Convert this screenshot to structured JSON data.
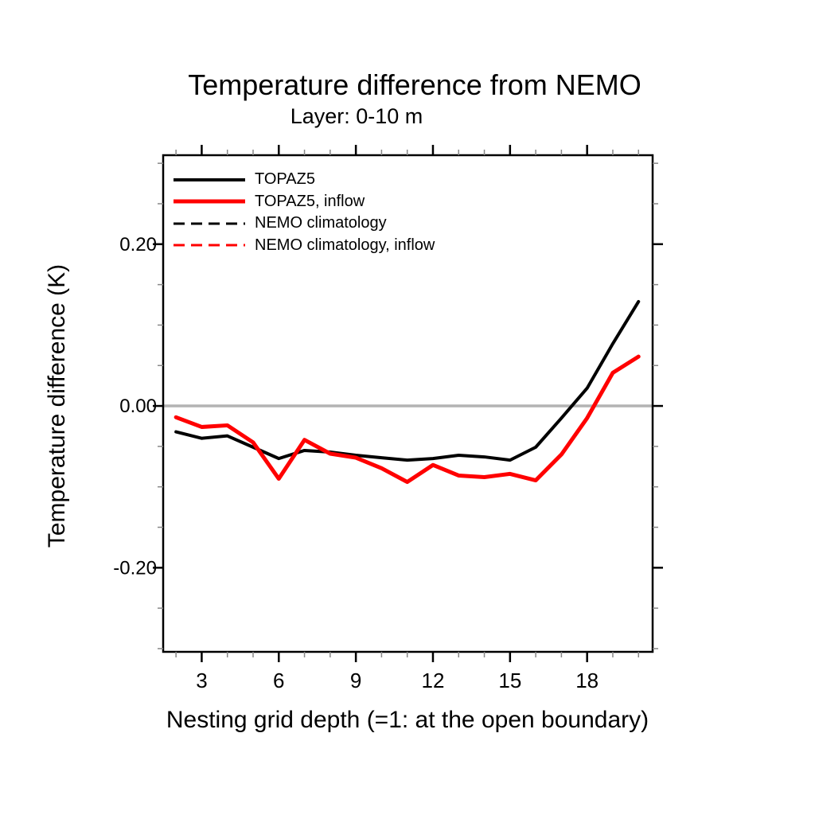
{
  "chart_data": {
    "type": "line",
    "title": "Temperature difference from NEMO",
    "subtitle": "Layer: 0-10 m",
    "xlabel": "Nesting grid depth (=1: at the open boundary)",
    "ylabel": "Temperature difference (K)",
    "x": [
      2,
      3,
      4,
      5,
      6,
      7,
      8,
      9,
      10,
      11,
      12,
      13,
      14,
      15,
      16,
      17,
      18,
      19,
      20
    ],
    "series": [
      {
        "name": "TOPAZ5",
        "color": "#000000",
        "style": "solid",
        "width": 4,
        "values": [
          -0.032,
          -0.04,
          -0.037,
          -0.051,
          -0.065,
          -0.055,
          -0.057,
          -0.061,
          -0.064,
          -0.067,
          -0.065,
          -0.061,
          -0.063,
          -0.067,
          -0.051,
          -0.015,
          0.022,
          0.077,
          0.129
        ]
      },
      {
        "name": "TOPAZ5, inflow",
        "color": "#ff0000",
        "style": "solid",
        "width": 5,
        "values": [
          -0.014,
          -0.026,
          -0.024,
          -0.045,
          -0.09,
          -0.042,
          -0.059,
          -0.064,
          -0.077,
          -0.094,
          -0.073,
          -0.086,
          -0.088,
          -0.084,
          -0.092,
          -0.06,
          -0.015,
          0.041,
          0.061
        ]
      },
      {
        "name": "NEMO climatology",
        "color": "#000000",
        "style": "dashed",
        "width": 3,
        "values": [
          0,
          0,
          0,
          0,
          0,
          0,
          0,
          0,
          0,
          0,
          0,
          0,
          0,
          0,
          0,
          0,
          0,
          0,
          0
        ]
      },
      {
        "name": "NEMO climatology, inflow",
        "color": "#ff0000",
        "style": "dashed",
        "width": 3,
        "values": [
          0,
          0,
          0,
          0,
          0,
          0,
          0,
          0,
          0,
          0,
          0,
          0,
          0,
          0,
          0,
          0,
          0,
          0,
          0
        ]
      }
    ],
    "xlim": [
      1.5,
      20.55
    ],
    "ylim": [
      -0.304,
      0.31
    ],
    "x_major_ticks": [
      3,
      6,
      9,
      12,
      15,
      18
    ],
    "x_tick_labels": [
      "3",
      "6",
      "9",
      "12",
      "15",
      "18"
    ],
    "x_minor_step": 1,
    "y_major_ticks": [
      0.2,
      0.0,
      -0.2
    ],
    "y_tick_labels": [
      "0.20",
      "0.00",
      "-0.20"
    ],
    "y_minor_step": 0.05,
    "zero_line": {
      "value": 0.0,
      "color": "#b3b3b3"
    },
    "grid": false,
    "legend_position": "top-left-inside",
    "axis_color": "#000000",
    "minor_tick_color": "#888888"
  }
}
